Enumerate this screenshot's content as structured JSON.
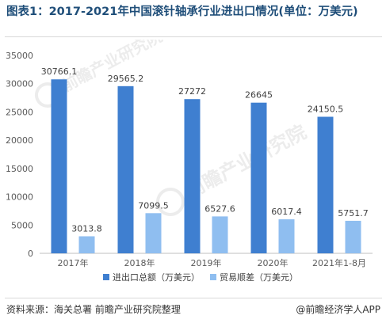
{
  "title_prefix": "图表1：",
  "title": "2017-2021年中国滚针轴承行业进出口情况(单位：万美元)",
  "footer": {
    "source": "资料来源：海关总署 前瞻产业研究院整理",
    "brand": "@前瞻经济学人APP",
    "watermark": "前瞻产业研究院"
  },
  "colors": {
    "import_export": "#3f7fd0",
    "trade_surplus": "#8fbef0"
  },
  "chart_data": {
    "type": "bar",
    "title": "2017-2021年中国滚针轴承行业进出口情况(单位：万美元)",
    "categories": [
      "2017年",
      "2018年",
      "2019年",
      "2020年",
      "2021年1-8月"
    ],
    "series": [
      {
        "name": "进出口总额（万美元）",
        "values": [
          30766.1,
          29565.2,
          27272,
          26645,
          24150.5
        ],
        "labels": [
          "30766.1",
          "29565.2",
          "27272",
          "26645",
          "24150.5"
        ]
      },
      {
        "name": "贸易顺差（万美元）",
        "values": [
          3013.8,
          7099.5,
          6527.6,
          6017.4,
          5751.7
        ],
        "labels": [
          "3013.8",
          "7099.5",
          "6527.6",
          "6017.4",
          "5751.7"
        ]
      }
    ],
    "ylim": [
      0,
      35000
    ],
    "yticks": [
      0,
      5000,
      10000,
      15000,
      20000,
      25000,
      30000,
      35000
    ],
    "ytick_labels": [
      "0",
      "5000",
      "10000",
      "15000",
      "20000",
      "25000",
      "30000",
      "35000"
    ],
    "grid": false,
    "legend_position": "bottom"
  }
}
